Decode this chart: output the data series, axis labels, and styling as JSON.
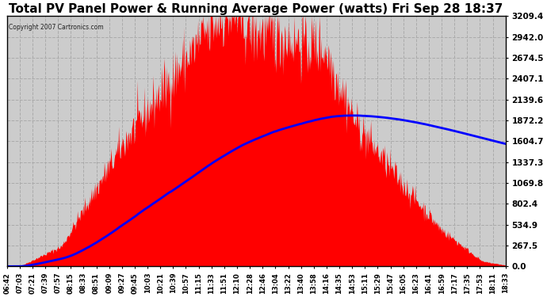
{
  "title": "Total PV Panel Power & Running Average Power (watts) Fri Sep 28 18:37",
  "copyright": "Copyright 2007 Cartronics.com",
  "y_ticks": [
    0.0,
    267.5,
    534.9,
    802.4,
    1069.8,
    1337.3,
    1604.7,
    1872.2,
    2139.6,
    2407.1,
    2674.5,
    2942.0,
    3209.4
  ],
  "ylim": [
    0.0,
    3209.4
  ],
  "bg_color": "#ffffff",
  "plot_bg_color": "#cccccc",
  "grid_color": "#aaaaaa",
  "fill_color": "#ff0000",
  "avg_line_color": "#0000ff",
  "title_fontsize": 11,
  "x_labels": [
    "06:42",
    "07:03",
    "07:21",
    "07:39",
    "07:57",
    "08:15",
    "08:33",
    "08:51",
    "09:09",
    "09:27",
    "09:45",
    "10:03",
    "10:21",
    "10:39",
    "10:57",
    "11:15",
    "11:33",
    "11:51",
    "12:10",
    "12:28",
    "12:46",
    "13:04",
    "13:22",
    "13:40",
    "13:58",
    "14:16",
    "14:35",
    "14:53",
    "15:11",
    "15:29",
    "15:47",
    "16:05",
    "16:23",
    "16:41",
    "16:59",
    "17:17",
    "17:35",
    "17:53",
    "18:11",
    "18:33"
  ]
}
